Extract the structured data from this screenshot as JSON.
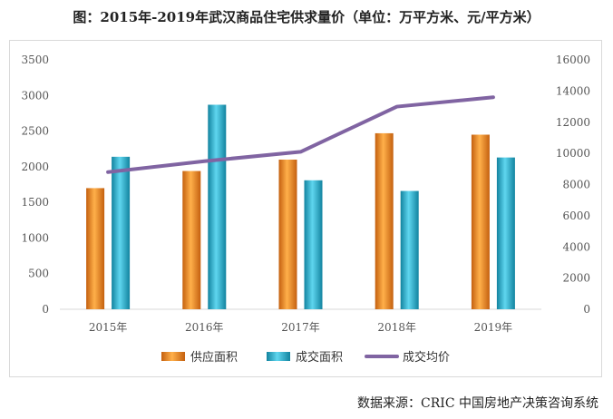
{
  "title": "图：2015年-2019年武汉商品住宅供求量价（单位：万平方米、元/平方米）",
  "source": "数据来源：CRIC 中国房地产决策咨询系统",
  "chart_data": {
    "type": "bar",
    "categories": [
      "2015年",
      "2016年",
      "2017年",
      "2018年",
      "2019年"
    ],
    "series": [
      {
        "name": "供应面积",
        "type": "bar",
        "axis": "left",
        "color": "#f08a24",
        "values": [
          1700,
          1940,
          2100,
          2470,
          2450
        ]
      },
      {
        "name": "成交面积",
        "type": "bar",
        "axis": "left",
        "color": "#2bb8d6",
        "values": [
          2140,
          2870,
          1810,
          1660,
          2130
        ]
      },
      {
        "name": "成交均价",
        "type": "line",
        "axis": "right",
        "color": "#8064a2",
        "values": [
          8800,
          9500,
          10100,
          13000,
          13600
        ]
      }
    ],
    "ylim_left": [
      0,
      3500
    ],
    "yticks_left": [
      "0",
      "500",
      "1000",
      "1500",
      "2000",
      "2500",
      "3000",
      "3500"
    ],
    "ylim_right": [
      0,
      16000
    ],
    "yticks_right": [
      "0",
      "2000",
      "4000",
      "6000",
      "8000",
      "10000",
      "12000",
      "14000",
      "16000"
    ],
    "grid": false,
    "legend": "bottom"
  }
}
